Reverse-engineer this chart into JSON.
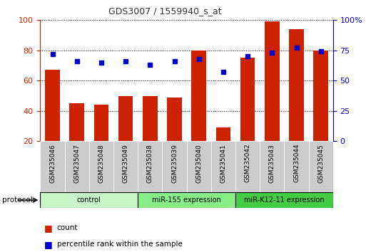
{
  "title": "GDS3007 / 1559940_s_at",
  "samples": [
    "GSM235046",
    "GSM235047",
    "GSM235048",
    "GSM235049",
    "GSM235038",
    "GSM235039",
    "GSM235040",
    "GSM235041",
    "GSM235042",
    "GSM235043",
    "GSM235044",
    "GSM235045"
  ],
  "counts": [
    67,
    45,
    44,
    50,
    50,
    49,
    80,
    29,
    75,
    99,
    94,
    80
  ],
  "percentile_ranks": [
    72,
    66,
    65,
    66,
    63,
    66,
    68,
    57,
    70,
    73,
    77,
    74
  ],
  "groups": [
    {
      "label": "control",
      "start": 0,
      "end": 3,
      "color": "#c8f5c8"
    },
    {
      "label": "miR-155 expression",
      "start": 4,
      "end": 7,
      "color": "#88ee88"
    },
    {
      "label": "miR-K12-11 expression",
      "start": 8,
      "end": 11,
      "color": "#44cc44"
    }
  ],
  "ylim_left": [
    20,
    100
  ],
  "ylim_right": [
    0,
    100
  ],
  "right_ticks": [
    0,
    25,
    50,
    75,
    100
  ],
  "right_tick_labels": [
    "0",
    "25",
    "50",
    "75",
    "100%"
  ],
  "left_ticks": [
    20,
    40,
    60,
    80,
    100
  ],
  "bar_color": "#cc2200",
  "dot_color": "#0000cc",
  "title_color": "#333333",
  "left_tick_color": "#cc2200",
  "right_tick_color": "#0000cc",
  "xtick_bg": "#cccccc",
  "protocol_label": "protocol",
  "legend_count": "count",
  "legend_pct": "percentile rank within the sample"
}
